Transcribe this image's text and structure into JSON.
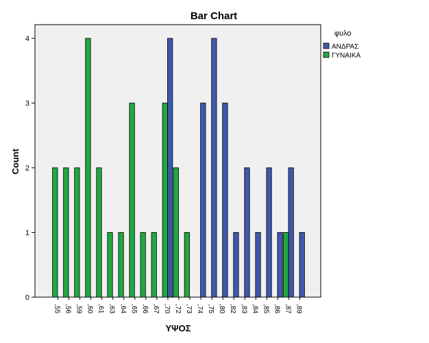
{
  "chart_data": {
    "type": "bar",
    "title": "Bar Chart",
    "xlabel": "ΥΨΟΣ",
    "ylabel": "Count",
    "ylim": [
      0,
      4
    ],
    "yticks": [
      "0",
      "1",
      "2",
      "3",
      "4"
    ],
    "grid": false,
    "legend_position": "right",
    "legend_title": "φυλο",
    "categories": [
      ",55",
      ",56",
      ",59",
      ",60",
      ",61",
      ",63",
      ",64",
      ",65",
      ",66",
      ",67",
      ",70",
      ",72",
      ",73",
      ",74",
      ",75",
      ",80",
      ",82",
      ",83",
      ",84",
      ",85",
      ",86",
      ",87",
      ",89"
    ],
    "series": [
      {
        "name": "ΑΝΔΡΑΣ",
        "color": "#3e58ac",
        "values": [
          0,
          0,
          0,
          0,
          0,
          0,
          0,
          0,
          0,
          0,
          4,
          0,
          0,
          3,
          4,
          3,
          1,
          2,
          1,
          2,
          1,
          2,
          1
        ]
      },
      {
        "name": "ΓΥΝΑΙΚΑ",
        "color": "#21a840",
        "values": [
          2,
          2,
          2,
          4,
          2,
          1,
          1,
          3,
          1,
          1,
          3,
          2,
          1,
          0,
          0,
          0,
          0,
          0,
          0,
          0,
          0,
          1,
          0
        ]
      }
    ],
    "plot_background": "#f0f0f0"
  }
}
